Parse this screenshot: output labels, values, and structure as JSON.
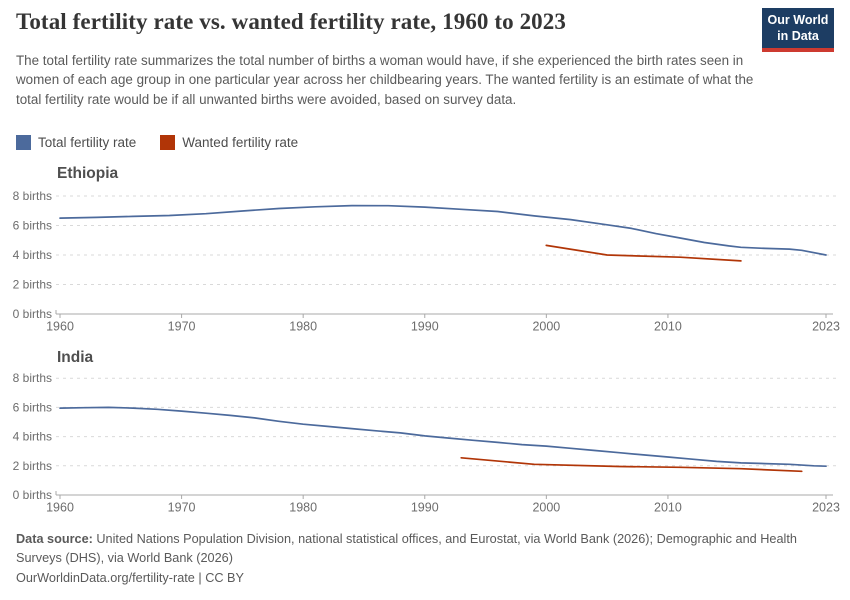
{
  "header": {
    "title": "Total fertility rate vs. wanted fertility rate, 1960 to 2023",
    "subtitle": "The total fertility rate summarizes the total number of births a woman would have, if she experienced the birth rates seen in women of each age group in one particular year across her childbearing years. The wanted fertility is an estimate of what the total fertility rate would be if all unwanted births were avoided, based on survey data.",
    "logo": {
      "line1": "Our World",
      "line2": "in Data",
      "bg_color": "#1d3d63",
      "accent_color": "#cd3a30"
    },
    "legend": [
      {
        "label": "Total fertility rate",
        "color": "#4c6a9c"
      },
      {
        "label": "Wanted fertility rate",
        "color": "#b13507"
      }
    ]
  },
  "chart_data": [
    {
      "type": "line",
      "title": "Ethiopia",
      "xlabel": "",
      "ylabel": "births",
      "xlim": [
        1960,
        2023
      ],
      "ylim": [
        0,
        8
      ],
      "grid": true,
      "x_ticks": [
        {
          "value": 1960,
          "label": "1960"
        },
        {
          "value": 1970,
          "label": "1970"
        },
        {
          "value": 1980,
          "label": "1980"
        },
        {
          "value": 1990,
          "label": "1990"
        },
        {
          "value": 2000,
          "label": "2000"
        },
        {
          "value": 2010,
          "label": "2010"
        },
        {
          "value": 2023,
          "label": "2023"
        }
      ],
      "y_ticks": [
        {
          "value": 0,
          "label": "0 births"
        },
        {
          "value": 2,
          "label": "2 births"
        },
        {
          "value": 4,
          "label": "4 births"
        },
        {
          "value": 6,
          "label": "6 births"
        },
        {
          "value": 8,
          "label": "8 births"
        }
      ],
      "series": [
        {
          "name": "Total fertility rate",
          "color": "#4c6a9c",
          "points": [
            [
              1960,
              6.5
            ],
            [
              1963,
              6.55
            ],
            [
              1966,
              6.62
            ],
            [
              1969,
              6.68
            ],
            [
              1972,
              6.8
            ],
            [
              1975,
              6.98
            ],
            [
              1978,
              7.15
            ],
            [
              1981,
              7.27
            ],
            [
              1984,
              7.35
            ],
            [
              1987,
              7.34
            ],
            [
              1990,
              7.25
            ],
            [
              1993,
              7.1
            ],
            [
              1996,
              6.95
            ],
            [
              1999,
              6.65
            ],
            [
              2002,
              6.4
            ],
            [
              2005,
              6.05
            ],
            [
              2007,
              5.8
            ],
            [
              2009,
              5.45
            ],
            [
              2011,
              5.15
            ],
            [
              2013,
              4.85
            ],
            [
              2015,
              4.62
            ],
            [
              2016,
              4.52
            ],
            [
              2018,
              4.45
            ],
            [
              2020,
              4.4
            ],
            [
              2021,
              4.32
            ],
            [
              2023,
              4.0
            ]
          ]
        },
        {
          "name": "Wanted fertility rate",
          "color": "#b13507",
          "points": [
            [
              2000,
              4.65
            ],
            [
              2005,
              4.0
            ],
            [
              2011,
              3.85
            ],
            [
              2016,
              3.6
            ]
          ]
        }
      ]
    },
    {
      "type": "line",
      "title": "India",
      "xlabel": "",
      "ylabel": "births",
      "xlim": [
        1960,
        2023
      ],
      "ylim": [
        0,
        8
      ],
      "grid": true,
      "x_ticks": [
        {
          "value": 1960,
          "label": "1960"
        },
        {
          "value": 1970,
          "label": "1970"
        },
        {
          "value": 1980,
          "label": "1980"
        },
        {
          "value": 1990,
          "label": "1990"
        },
        {
          "value": 2000,
          "label": "2000"
        },
        {
          "value": 2010,
          "label": "2010"
        },
        {
          "value": 2023,
          "label": "2023"
        }
      ],
      "y_ticks": [
        {
          "value": 0,
          "label": "0 births"
        },
        {
          "value": 2,
          "label": "2 births"
        },
        {
          "value": 4,
          "label": "4 births"
        },
        {
          "value": 6,
          "label": "6 births"
        },
        {
          "value": 8,
          "label": "8 births"
        }
      ],
      "series": [
        {
          "name": "Total fertility rate",
          "color": "#4c6a9c",
          "points": [
            [
              1960,
              5.95
            ],
            [
              1962,
              5.98
            ],
            [
              1964,
              6.0
            ],
            [
              1966,
              5.95
            ],
            [
              1968,
              5.87
            ],
            [
              1970,
              5.75
            ],
            [
              1972,
              5.6
            ],
            [
              1974,
              5.45
            ],
            [
              1976,
              5.28
            ],
            [
              1978,
              5.05
            ],
            [
              1980,
              4.85
            ],
            [
              1982,
              4.7
            ],
            [
              1984,
              4.55
            ],
            [
              1986,
              4.4
            ],
            [
              1988,
              4.25
            ],
            [
              1990,
              4.05
            ],
            [
              1992,
              3.9
            ],
            [
              1994,
              3.75
            ],
            [
              1996,
              3.6
            ],
            [
              1998,
              3.45
            ],
            [
              2000,
              3.35
            ],
            [
              2002,
              3.2
            ],
            [
              2004,
              3.05
            ],
            [
              2006,
              2.9
            ],
            [
              2008,
              2.75
            ],
            [
              2010,
              2.6
            ],
            [
              2012,
              2.45
            ],
            [
              2014,
              2.3
            ],
            [
              2016,
              2.2
            ],
            [
              2018,
              2.15
            ],
            [
              2020,
              2.1
            ],
            [
              2022,
              2.0
            ],
            [
              2023,
              1.97
            ]
          ]
        },
        {
          "name": "Wanted fertility rate",
          "color": "#b13507",
          "points": [
            [
              1993,
              2.55
            ],
            [
              1999,
              2.1
            ],
            [
              2006,
              1.95
            ],
            [
              2011,
              1.9
            ],
            [
              2016,
              1.8
            ],
            [
              2021,
              1.62
            ]
          ]
        }
      ]
    }
  ],
  "footer": {
    "source_label": "Data source:",
    "source_text": " United Nations Population Division, national statistical offices, and Eurostat, via World Bank (2026); Demographic and Health Surveys (DHS), via World Bank (2026)",
    "link_text": "OurWorldinData.org/fertility-rate | CC BY"
  }
}
